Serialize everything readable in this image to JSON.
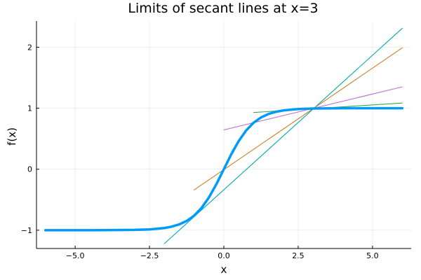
{
  "chart_data": {
    "type": "line",
    "title": "Limits of secant lines at x=3",
    "xlabel": "x",
    "ylabel": "f(x)",
    "xlim": [
      -6.3,
      6.3
    ],
    "ylim": [
      -1.3,
      2.43
    ],
    "grid": true,
    "legend": "none",
    "x_ticks": [
      -5.0,
      -2.5,
      0.0,
      2.5,
      5.0
    ],
    "x_tick_labels": [
      "−5.0",
      "−2.5",
      "0.0",
      "2.5",
      "5.0"
    ],
    "y_ticks": [
      -1,
      0,
      1,
      2
    ],
    "y_tick_labels": [
      "−1",
      "0",
      "1",
      "2"
    ],
    "series": [
      {
        "color": "#009af9",
        "x": [
          -6,
          -5,
          -4,
          -3,
          -2.5,
          -2,
          -1.75,
          -1.5,
          -1.25,
          -1,
          -0.75,
          -0.5,
          -0.25,
          0,
          0.25,
          0.5,
          0.75,
          1,
          1.25,
          1.5,
          1.75,
          2,
          2.5,
          3,
          4,
          5,
          6
        ],
        "y": [
          -1.0,
          -1.0,
          -0.999,
          -0.995,
          -0.987,
          -0.964,
          -0.941,
          -0.905,
          -0.848,
          -0.762,
          -0.635,
          -0.462,
          -0.245,
          0.0,
          0.245,
          0.462,
          0.635,
          0.762,
          0.848,
          0.905,
          0.941,
          0.964,
          0.987,
          0.995,
          0.999,
          1.0,
          1.0
        ]
      },
      {
        "color": "#00a9ad",
        "x": [
          -2,
          6
        ],
        "y": [
          -1.22,
          2.31
        ]
      },
      {
        "color": "#c68125",
        "x": [
          -1,
          6
        ],
        "y": [
          -0.34,
          1.99
        ]
      },
      {
        "color": "#c271d2",
        "x": [
          0,
          6
        ],
        "y": [
          0.645,
          1.35
        ]
      },
      {
        "color": "#3da44d",
        "x": [
          1,
          6
        ],
        "y": [
          0.93,
          1.085
        ]
      }
    ]
  }
}
